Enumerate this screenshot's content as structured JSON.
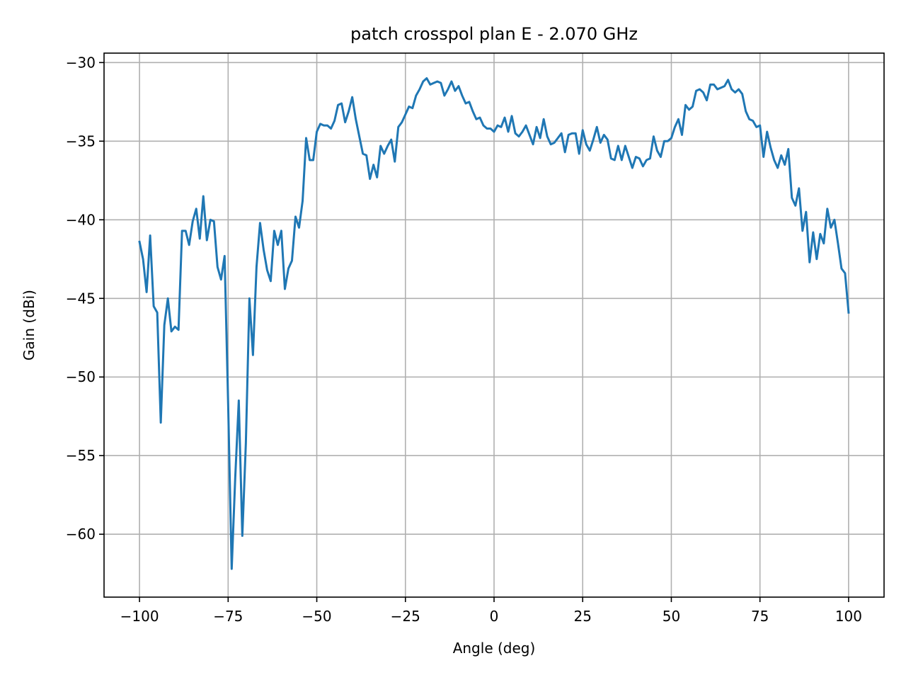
{
  "chart_data": {
    "type": "line",
    "title": "patch crosspol plan E - 2.070 GHz",
    "xlabel": "Angle (deg)",
    "ylabel": "Gain (dBi)",
    "xlim": [
      -110,
      110
    ],
    "ylim": [
      -64,
      -29.4
    ],
    "grid": true,
    "xticks": [
      -100,
      -75,
      -50,
      -25,
      0,
      25,
      50,
      75,
      100
    ],
    "yticks": [
      -30,
      -35,
      -40,
      -45,
      -50,
      -55,
      -60
    ],
    "xtick_labels": [
      "−100",
      "−75",
      "−50",
      "−25",
      "0",
      "25",
      "50",
      "75",
      "100"
    ],
    "ytick_labels": [
      "−30",
      "−35",
      "−40",
      "−45",
      "−50",
      "−55",
      "−60"
    ],
    "line_color": "#1f77b4",
    "series": [
      {
        "x": [
          -100,
          -99,
          -98,
          -97,
          -96,
          -95,
          -94,
          -93,
          -92,
          -91,
          -90,
          -89,
          -88,
          -87,
          -86,
          -85,
          -84,
          -83,
          -82,
          -81,
          -80,
          -79,
          -78,
          -77,
          -76,
          -75,
          -74,
          -73,
          -72,
          -71,
          -70,
          -69,
          -68,
          -67,
          -66,
          -65,
          -64,
          -63,
          -62,
          -61,
          -60,
          -59,
          -58,
          -57,
          -56,
          -55,
          -54,
          -53,
          -52,
          -51,
          -50,
          -49,
          -48,
          -47,
          -46,
          -45,
          -44,
          -43,
          -42,
          -41,
          -40,
          -39,
          -38,
          -37,
          -36,
          -35,
          -34,
          -33,
          -32,
          -31,
          -30,
          -29,
          -28,
          -27,
          -26,
          -25,
          -24,
          -23,
          -22,
          -21,
          -20,
          -19,
          -18,
          -17,
          -16,
          -15,
          -14,
          -13,
          -12,
          -11,
          -10,
          -9,
          -8,
          -7,
          -6,
          -5,
          -4,
          -3,
          -2,
          -1,
          0,
          1,
          2,
          3,
          4,
          5,
          6,
          7,
          8,
          9,
          10,
          11,
          12,
          13,
          14,
          15,
          16,
          17,
          18,
          19,
          20,
          21,
          22,
          23,
          24,
          25,
          26,
          27,
          28,
          29,
          30,
          31,
          32,
          33,
          34,
          35,
          36,
          37,
          38,
          39,
          40,
          41,
          42,
          43,
          44,
          45,
          46,
          47,
          48,
          49,
          50,
          51,
          52,
          53,
          54,
          55,
          56,
          57,
          58,
          59,
          60,
          61,
          62,
          63,
          64,
          65,
          66,
          67,
          68,
          69,
          70,
          71,
          72,
          73,
          74,
          75,
          76,
          77,
          78,
          79,
          80,
          81,
          82,
          83,
          84,
          85,
          86,
          87,
          88,
          89,
          90,
          91,
          92,
          93,
          94,
          95,
          96,
          97,
          98,
          99,
          100
        ],
        "y": [
          -41.4,
          -42.5,
          -44.6,
          -41.0,
          -45.5,
          -45.9,
          -52.9,
          -46.7,
          -45.0,
          -47.1,
          -46.8,
          -47.0,
          -40.7,
          -40.7,
          -41.6,
          -40.1,
          -39.3,
          -41.2,
          -38.5,
          -41.3,
          -40.0,
          -40.1,
          -43.0,
          -43.8,
          -42.3,
          -51.7,
          -62.2,
          -56.4,
          -51.5,
          -60.1,
          -54.2,
          -45.0,
          -48.6,
          -43.0,
          -40.2,
          -41.9,
          -43.2,
          -43.9,
          -40.7,
          -41.6,
          -40.7,
          -44.4,
          -43.1,
          -42.6,
          -39.8,
          -40.5,
          -38.8,
          -34.8,
          -36.2,
          -36.2,
          -34.4,
          -33.9,
          -34.0,
          -34.0,
          -34.2,
          -33.7,
          -32.7,
          -32.6,
          -33.8,
          -33.1,
          -32.2,
          -33.6,
          -34.7,
          -35.8,
          -35.9,
          -37.4,
          -36.5,
          -37.3,
          -35.3,
          -35.8,
          -35.3,
          -34.9,
          -36.3,
          -34.1,
          -33.8,
          -33.3,
          -32.8,
          -32.9,
          -32.1,
          -31.7,
          -31.2,
          -31.0,
          -31.4,
          -31.3,
          -31.2,
          -31.3,
          -32.1,
          -31.7,
          -31.2,
          -31.8,
          -31.5,
          -32.1,
          -32.6,
          -32.5,
          -33.1,
          -33.6,
          -33.5,
          -34.0,
          -34.2,
          -34.2,
          -34.4,
          -34.0,
          -34.1,
          -33.5,
          -34.4,
          -33.4,
          -34.5,
          -34.7,
          -34.4,
          -34.0,
          -34.6,
          -35.2,
          -34.1,
          -34.8,
          -33.6,
          -34.7,
          -35.2,
          -35.1,
          -34.8,
          -34.5,
          -35.7,
          -34.6,
          -34.5,
          -34.5,
          -35.8,
          -34.3,
          -35.2,
          -35.6,
          -34.9,
          -34.1,
          -35.1,
          -34.6,
          -34.9,
          -36.1,
          -36.2,
          -35.3,
          -36.2,
          -35.3,
          -36.0,
          -36.7,
          -36.0,
          -36.1,
          -36.6,
          -36.2,
          -36.1,
          -34.7,
          -35.6,
          -36.0,
          -35.0,
          -35.0,
          -34.8,
          -34.1,
          -33.6,
          -34.6,
          -32.7,
          -33.0,
          -32.8,
          -31.8,
          -31.7,
          -31.9,
          -32.4,
          -31.4,
          -31.4,
          -31.7,
          -31.6,
          -31.5,
          -31.1,
          -31.7,
          -31.9,
          -31.7,
          -32.0,
          -33.1,
          -33.6,
          -33.7,
          -34.1,
          -34.0,
          -36.0,
          -34.4,
          -35.4,
          -36.2,
          -36.7,
          -35.9,
          -36.5,
          -35.5,
          -38.6,
          -39.1,
          -38.0,
          -40.7,
          -39.5,
          -42.7,
          -40.8,
          -42.5,
          -40.9,
          -41.5,
          -39.3,
          -40.5,
          -40.0,
          -41.5,
          -43.1,
          -43.4,
          -45.9
        ]
      }
    ]
  }
}
